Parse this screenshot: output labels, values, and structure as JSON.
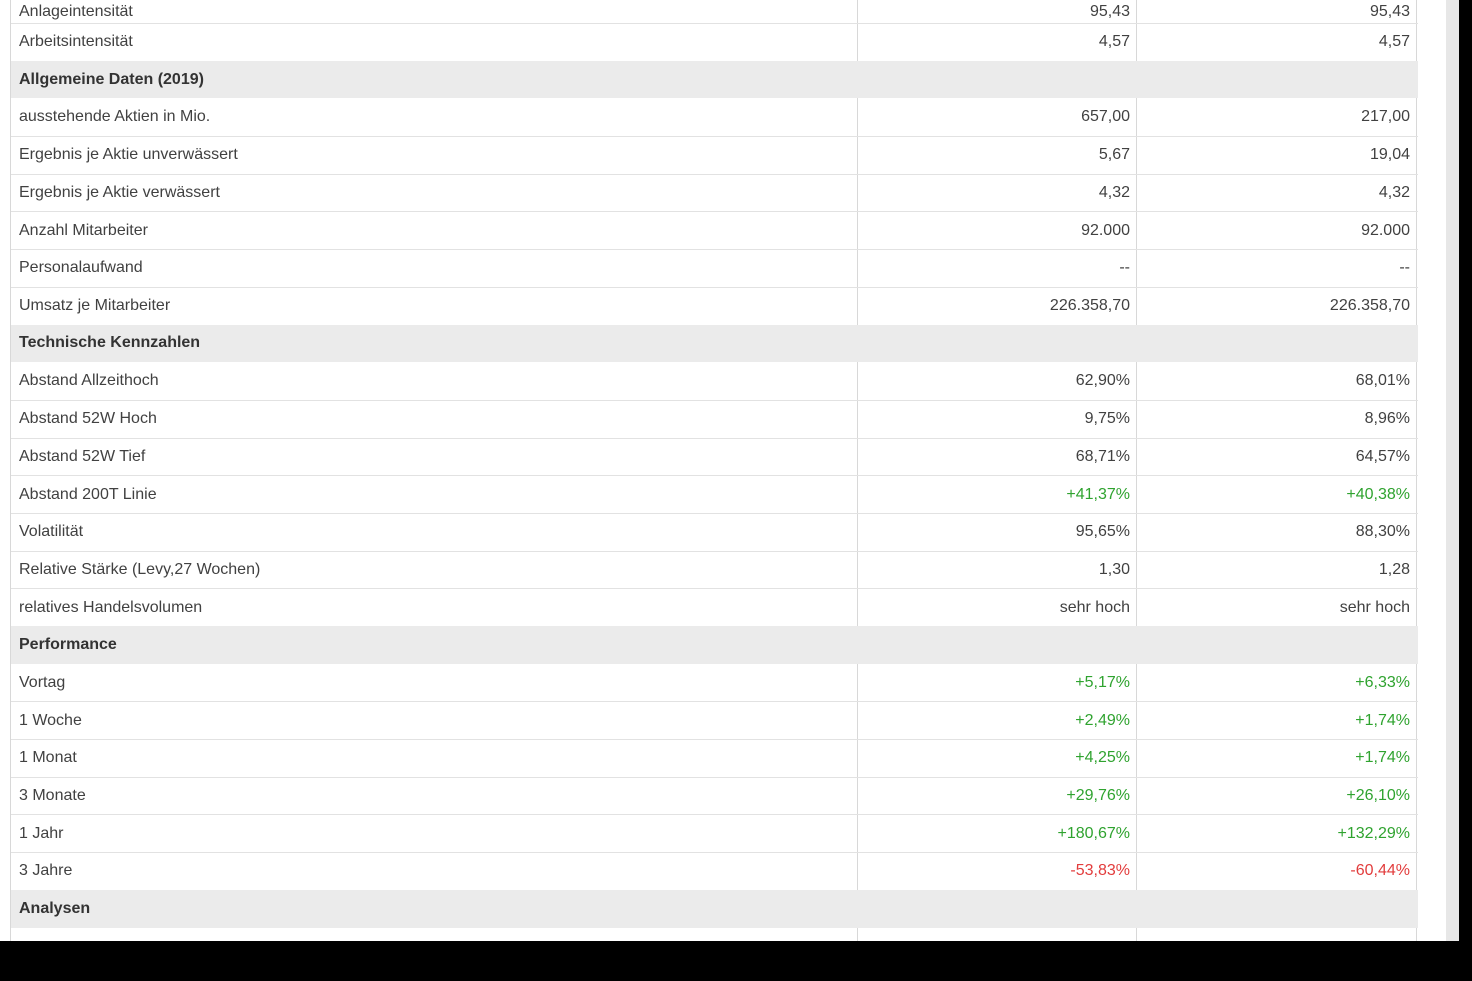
{
  "colors": {
    "positive": "#2fa32f",
    "negative": "#e23c3c",
    "section_bg": "#ebebeb",
    "row_border": "#e2e2e2",
    "column_border": "#d8d8d8",
    "label_text": "#414141",
    "section_text": "#333333",
    "scrollbar_track": "#e7e7e7",
    "letterbox": "#000000",
    "page_background": "#ffffff"
  },
  "table": {
    "rows": [
      {
        "type": "data",
        "label": "Anlageintensität",
        "values": [
          "95,43",
          "95,43"
        ],
        "value_color": "default"
      },
      {
        "type": "data",
        "label": "Arbeitsintensität",
        "values": [
          "4,57",
          "4,57"
        ],
        "value_color": "default"
      },
      {
        "type": "section",
        "label": "Allgemeine Daten (2019)"
      },
      {
        "type": "data",
        "label": "ausstehende Aktien in Mio.",
        "values": [
          "657,00",
          "217,00"
        ],
        "value_color": "default"
      },
      {
        "type": "data",
        "label": "Ergebnis je Aktie unverwässert",
        "values": [
          "5,67",
          "19,04"
        ],
        "value_color": "default"
      },
      {
        "type": "data",
        "label": "Ergebnis je Aktie verwässert",
        "values": [
          "4,32",
          "4,32"
        ],
        "value_color": "default"
      },
      {
        "type": "data",
        "label": "Anzahl Mitarbeiter",
        "values": [
          "92.000",
          "92.000"
        ],
        "value_color": "default"
      },
      {
        "type": "data",
        "label": "Personalaufwand",
        "values": [
          "--",
          "--"
        ],
        "value_color": "default"
      },
      {
        "type": "data",
        "label": "Umsatz je Mitarbeiter",
        "values": [
          "226.358,70",
          "226.358,70"
        ],
        "value_color": "default"
      },
      {
        "type": "section",
        "label": "Technische Kennzahlen"
      },
      {
        "type": "data",
        "label": "Abstand Allzeithoch",
        "values": [
          "62,90%",
          "68,01%"
        ],
        "value_color": "default"
      },
      {
        "type": "data",
        "label": "Abstand 52W Hoch",
        "values": [
          "9,75%",
          "8,96%"
        ],
        "value_color": "default"
      },
      {
        "type": "data",
        "label": "Abstand 52W Tief",
        "values": [
          "68,71%",
          "64,57%"
        ],
        "value_color": "default"
      },
      {
        "type": "data",
        "label": "Abstand 200T Linie",
        "values": [
          "+41,37%",
          "+40,38%"
        ],
        "value_color": "positive"
      },
      {
        "type": "data",
        "label": "Volatilität",
        "values": [
          "95,65%",
          "88,30%"
        ],
        "value_color": "default"
      },
      {
        "type": "data",
        "label": "Relative Stärke (Levy,27 Wochen)",
        "values": [
          "1,30",
          "1,28"
        ],
        "value_color": "default"
      },
      {
        "type": "data",
        "label": "relatives Handelsvolumen",
        "values": [
          "sehr hoch",
          "sehr hoch"
        ],
        "value_color": "default"
      },
      {
        "type": "section",
        "label": "Performance"
      },
      {
        "type": "data",
        "label": "Vortag",
        "values": [
          "+5,17%",
          "+6,33%"
        ],
        "value_color": "positive"
      },
      {
        "type": "data",
        "label": "1 Woche",
        "values": [
          "+2,49%",
          "+1,74%"
        ],
        "value_color": "positive"
      },
      {
        "type": "data",
        "label": "1 Monat",
        "values": [
          "+4,25%",
          "+1,74%"
        ],
        "value_color": "positive"
      },
      {
        "type": "data",
        "label": "3 Monate",
        "values": [
          "+29,76%",
          "+26,10%"
        ],
        "value_color": "positive"
      },
      {
        "type": "data",
        "label": "1 Jahr",
        "values": [
          "+180,67%",
          "+132,29%"
        ],
        "value_color": "positive"
      },
      {
        "type": "data",
        "label": "3 Jahre",
        "values": [
          "-53,83%",
          "-60,44%"
        ],
        "value_color": "negative"
      },
      {
        "type": "section",
        "label": "Analysen"
      },
      {
        "type": "data",
        "label": "",
        "values": [
          "",
          ""
        ],
        "value_color": "default"
      }
    ]
  }
}
